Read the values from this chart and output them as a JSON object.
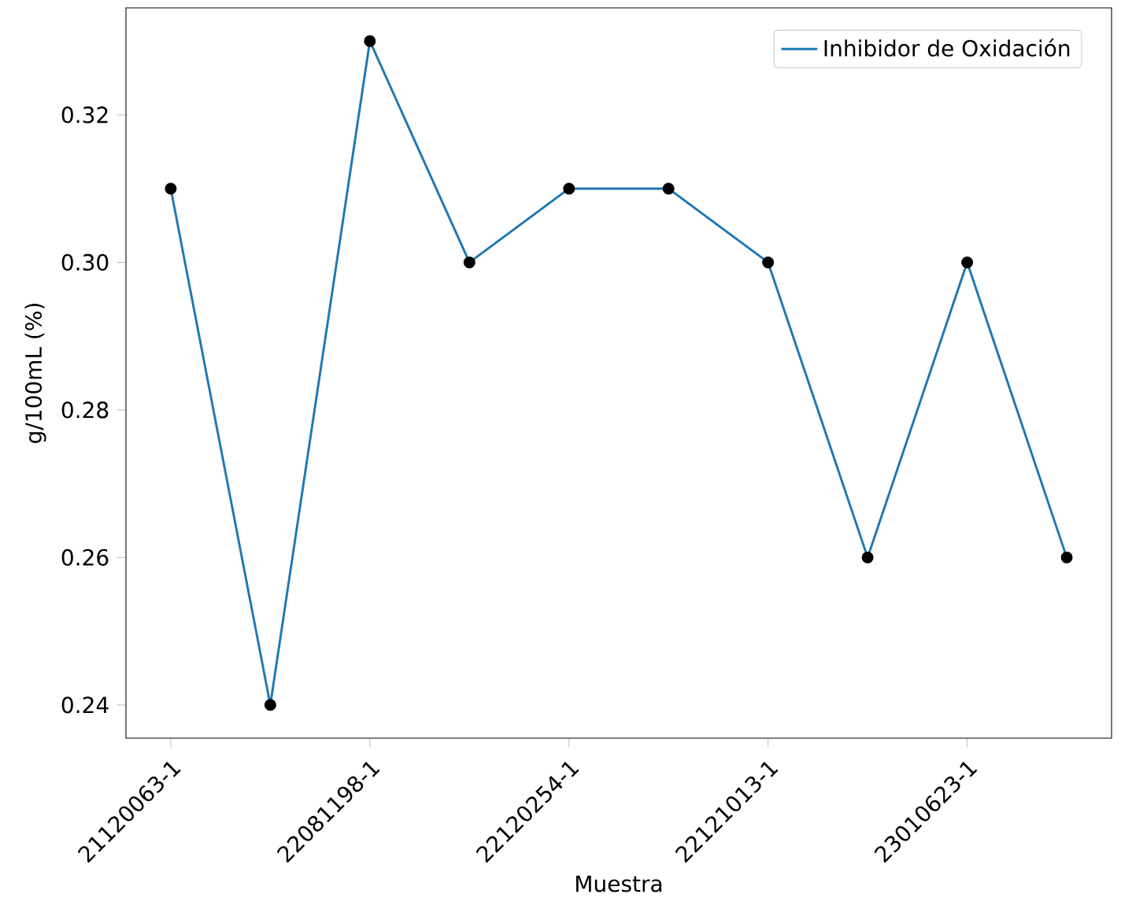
{
  "chart_data": {
    "type": "line",
    "xlabel": "Muestra",
    "ylabel": "g/100mL (%)",
    "categories": [
      "21120063-1",
      null,
      "22081198-1",
      null,
      "22120254-1",
      null,
      "22121013-1",
      null,
      "23010623-1",
      null
    ],
    "series": [
      {
        "name": "Inhibidor de Oxidación",
        "color": "#1f77b4",
        "marker": "none",
        "values": [
          0.31,
          0.24,
          0.33,
          0.3,
          0.31,
          0.31,
          0.3,
          0.26,
          0.3,
          0.26
        ]
      },
      {
        "type": "scatter",
        "color": "#000000",
        "marker": "circle",
        "values": [
          0.31,
          0.24,
          0.33,
          0.3,
          0.31,
          0.31,
          0.3,
          0.26,
          0.3,
          0.26
        ]
      }
    ],
    "ylim": [
      0.2355,
      0.3345
    ],
    "yticks": [
      0.24,
      0.26,
      0.28,
      {
        "value": 0.3,
        "label": "0.30"
      },
      0.32
    ],
    "grid": false,
    "legend": "top right"
  }
}
